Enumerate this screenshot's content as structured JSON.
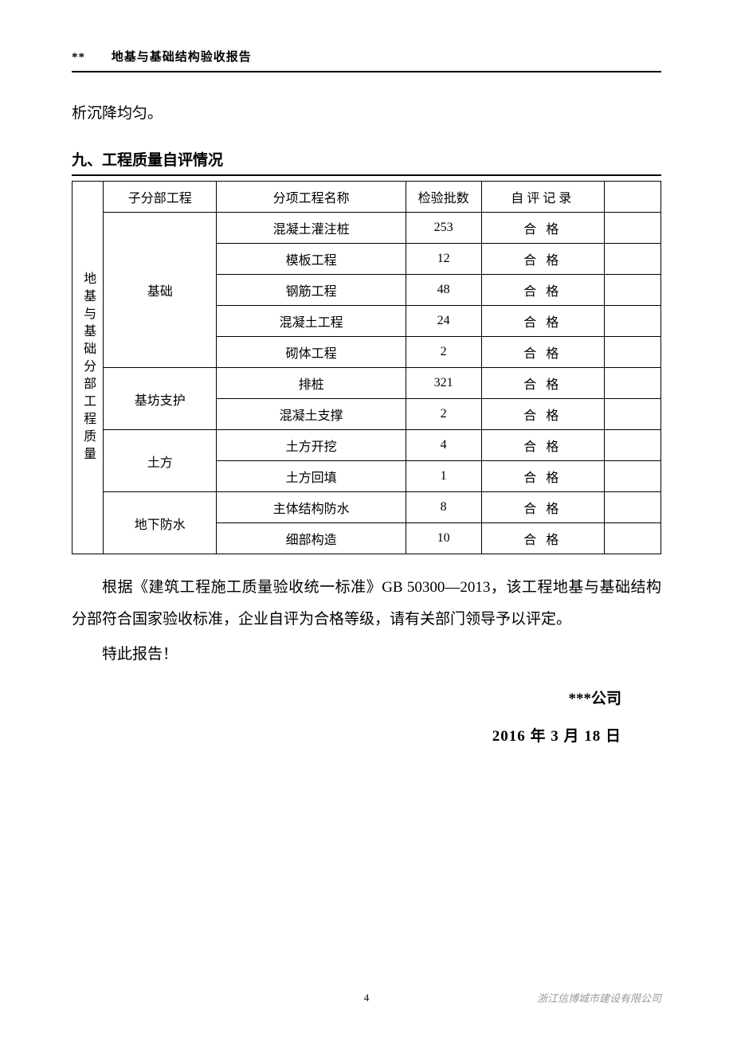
{
  "header": {
    "prefix": "**",
    "title": "地基与基础结构验收报告"
  },
  "continue_text": "析沉降均匀。",
  "section_title": "九、工程质量自评情况",
  "table": {
    "side_label": "地基与基础分部工程质量",
    "header_row": {
      "col1": "子分部工程",
      "col2": "分项工程名称",
      "col3": "检验批数",
      "col4": "自评记录"
    },
    "groups": [
      {
        "name": "基础",
        "rows": [
          {
            "item": "混凝土灌注桩",
            "count": "253",
            "result": "合 格"
          },
          {
            "item": "模板工程",
            "count": "12",
            "result": "合 格"
          },
          {
            "item": "钢筋工程",
            "count": "48",
            "result": "合 格"
          },
          {
            "item": "混凝土工程",
            "count": "24",
            "result": "合 格"
          },
          {
            "item": "砌体工程",
            "count": "2",
            "result": "合 格"
          }
        ]
      },
      {
        "name": "基坊支护",
        "rows": [
          {
            "item": "排桩",
            "count": "321",
            "result": "合 格"
          },
          {
            "item": "混凝土支撑",
            "count": "2",
            "result": "合 格"
          }
        ]
      },
      {
        "name": "土方",
        "rows": [
          {
            "item": "土方开挖",
            "count": "4",
            "result": "合 格"
          },
          {
            "item": "土方回填",
            "count": "1",
            "result": "合 格"
          }
        ]
      },
      {
        "name": "地下防水",
        "rows": [
          {
            "item": "主体结构防水",
            "count": "8",
            "result": "合 格"
          },
          {
            "item": "细部构造",
            "count": "10",
            "result": "合 格"
          }
        ]
      }
    ]
  },
  "body": {
    "para1": "根据《建筑工程施工质量验收统一标准》GB 50300—2013，该工程地基与基础结构分部符合国家验收标准，企业自评为合格等级，请有关部门领导予以评定。",
    "para2": "特此报告！"
  },
  "signature": "***公司",
  "date": "2016 年 3 月 18 日",
  "footer": {
    "page": "4",
    "watermark": "浙江信博城市建设有限公司"
  }
}
